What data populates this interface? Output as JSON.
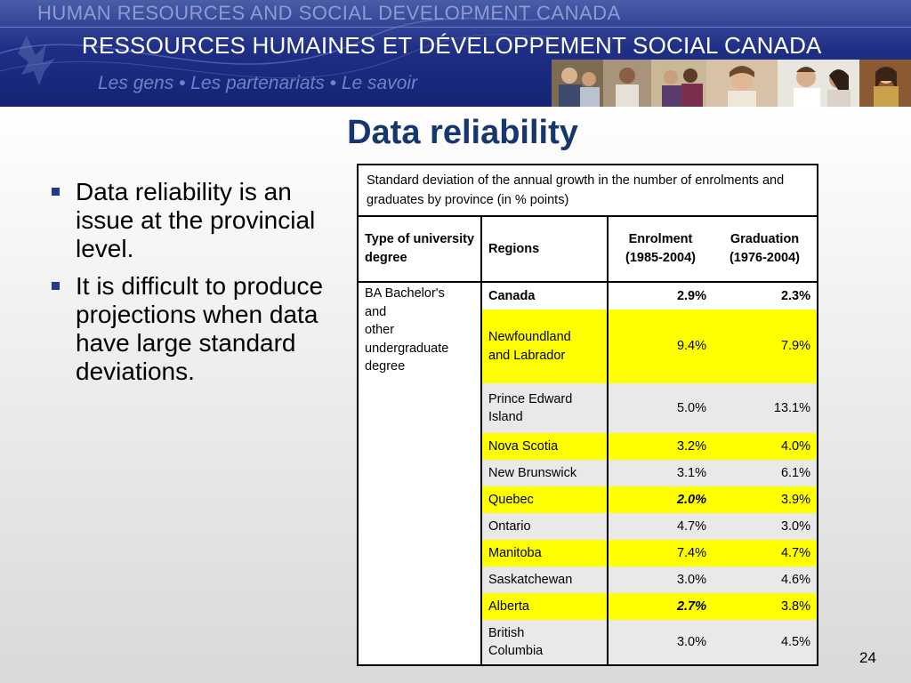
{
  "banner": {
    "line1": "HUMAN RESOURCES AND SOCIAL DEVELOPMENT CANADA",
    "line2": "RESSOURCES HUMAINES ET DÉVELOPPEMENT SOCIAL CANADA",
    "line3": "Les gens • Les partenariats • Le savoir"
  },
  "title": "Data reliability",
  "bullets": [
    "Data reliability is an issue at the provincial level.",
    "It is difficult to produce projections when data have large standard deviations."
  ],
  "table": {
    "caption": "Standard deviation of the annual growth in the number of enrolments and graduates by province (in % points)",
    "headers": {
      "type": "Type of university degree",
      "regions": "Regions",
      "enrolment_line1": "Enrolment",
      "enrolment_line2": "(1985-2004)",
      "graduation_line1": "Graduation",
      "graduation_line2": "(1976-2004)"
    },
    "degree_type": [
      "BA Bachelor's",
      "and",
      "other",
      "undergraduate",
      "degree"
    ],
    "rows": [
      {
        "region_line1": "Canada",
        "region_line2": "",
        "enrolment": "2.9%",
        "graduation": "2.3%"
      },
      {
        "region_line1": "Newfoundland",
        "region_line2": "and Labrador",
        "enrolment": "9.4%",
        "graduation": "7.9%"
      },
      {
        "region_line1": "Prince Edward",
        "region_line2": "Island",
        "enrolment": "5.0%",
        "graduation": "13.1%"
      },
      {
        "region_line1": "Nova Scotia",
        "region_line2": "",
        "enrolment": "3.2%",
        "graduation": "4.0%"
      },
      {
        "region_line1": "New Brunswick",
        "region_line2": "",
        "enrolment": "3.1%",
        "graduation": "6.1%"
      },
      {
        "region_line1": "Quebec",
        "region_line2": "",
        "enrolment": "2.0%",
        "graduation": "3.9%"
      },
      {
        "region_line1": "Ontario",
        "region_line2": "",
        "enrolment": "4.7%",
        "graduation": "3.0%"
      },
      {
        "region_line1": "Manitoba",
        "region_line2": "",
        "enrolment": "7.4%",
        "graduation": "4.7%"
      },
      {
        "region_line1": "Saskatchewan",
        "region_line2": "",
        "enrolment": "3.0%",
        "graduation": "4.6%"
      },
      {
        "region_line1": "Alberta",
        "region_line2": "",
        "enrolment": "2.7%",
        "graduation": "3.8%"
      },
      {
        "region_line1": "British",
        "region_line2": "Columbia",
        "enrolment": "3.0%",
        "graduation": "4.5%"
      }
    ]
  },
  "page_number": "24",
  "colors": {
    "banner_blue": "#1f2f86",
    "title_blue": "#16366e",
    "highlight_yellow": "#ffff00",
    "row_gray": "#e9e9e9"
  }
}
